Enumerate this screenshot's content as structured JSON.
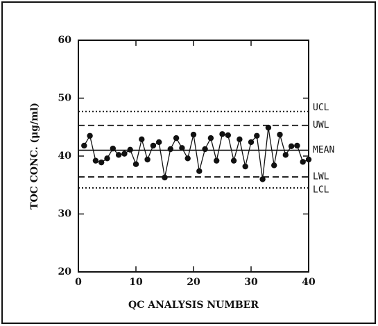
{
  "chart_data": {
    "type": "line",
    "x_label": "QC ANALYSIS NUMBER",
    "y_label": "TOC CONC. (μg/ml)",
    "xlim": [
      0,
      40
    ],
    "xticks": [
      0,
      10,
      20,
      30,
      40
    ],
    "ylim": [
      20,
      60
    ],
    "yticks": [
      20,
      30,
      40,
      50,
      60
    ],
    "color": "#111111",
    "x": [
      1,
      2,
      3,
      4,
      5,
      6,
      7,
      8,
      9,
      10,
      11,
      12,
      13,
      14,
      15,
      16,
      17,
      18,
      19,
      20,
      21,
      22,
      23,
      24,
      25,
      26,
      27,
      28,
      29,
      30,
      31,
      32,
      33,
      34,
      35,
      36,
      37,
      38,
      39,
      40
    ],
    "values": [
      41.8,
      43.5,
      39.2,
      38.9,
      39.6,
      41.3,
      40.2,
      40.4,
      41.1,
      38.6,
      42.9,
      39.4,
      41.8,
      42.4,
      36.3,
      41.2,
      43.1,
      41.4,
      39.6,
      43.7,
      37.4,
      41.2,
      43.1,
      39.2,
      43.8,
      43.6,
      39.2,
      42.9,
      38.2,
      42.4,
      43.5,
      36.0,
      44.9,
      38.4,
      43.7,
      40.2,
      41.7,
      41.8,
      39.0,
      39.4
    ],
    "reference_lines": [
      {
        "label": "UCL",
        "value": 47.7,
        "style": "dotted"
      },
      {
        "label": "UWL",
        "value": 45.3,
        "style": "dashed"
      },
      {
        "label": "MEAN",
        "value": 41.0,
        "style": "solid"
      },
      {
        "label": "LWL",
        "value": 36.4,
        "style": "dashed"
      },
      {
        "label": "LCL",
        "value": 34.5,
        "style": "dotted"
      }
    ]
  }
}
